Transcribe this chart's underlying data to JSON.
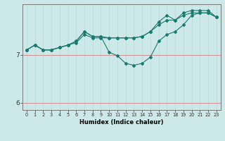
{
  "title": "",
  "xlabel": "Humidex (Indice chaleur)",
  "bg_color": "#cce8e8",
  "grid_color_v": "#b8d8d8",
  "grid_color_h": "#d08080",
  "line_color": "#1a7a6e",
  "x": [
    0,
    1,
    2,
    3,
    4,
    5,
    6,
    7,
    8,
    9,
    10,
    11,
    12,
    13,
    14,
    15,
    16,
    17,
    18,
    19,
    20,
    21,
    22,
    23
  ],
  "series1": [
    7.1,
    7.2,
    7.1,
    7.1,
    7.15,
    7.2,
    7.25,
    7.42,
    7.35,
    7.35,
    7.35,
    7.35,
    7.35,
    7.35,
    7.38,
    7.48,
    7.62,
    7.72,
    7.72,
    7.82,
    7.87,
    7.87,
    7.87,
    7.78
  ],
  "series2": [
    7.1,
    7.2,
    7.1,
    7.1,
    7.15,
    7.2,
    7.28,
    7.48,
    7.38,
    7.38,
    7.05,
    6.98,
    6.82,
    6.78,
    6.82,
    6.95,
    7.28,
    7.42,
    7.48,
    7.62,
    7.82,
    7.87,
    7.87,
    7.78
  ],
  "series3": [
    7.1,
    7.2,
    7.1,
    7.1,
    7.15,
    7.2,
    7.28,
    7.48,
    7.38,
    7.38,
    7.35,
    7.35,
    7.35,
    7.35,
    7.38,
    7.48,
    7.68,
    7.82,
    7.72,
    7.87,
    7.92,
    7.92,
    7.92,
    7.78
  ],
  "ylim": [
    5.85,
    8.05
  ],
  "yticks": [
    6,
    7
  ],
  "xlim": [
    -0.5,
    23.5
  ]
}
